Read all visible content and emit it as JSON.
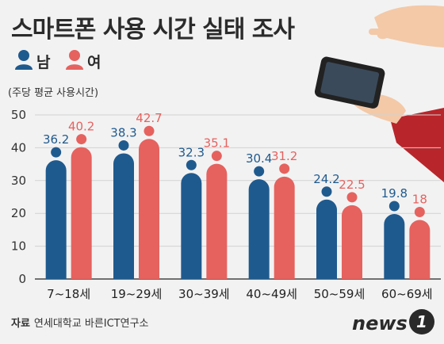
{
  "title": "스마트폰 사용 시간 실태 조사",
  "legend": {
    "male": "남",
    "female": "여"
  },
  "colors": {
    "male": "#1f5a8e",
    "female": "#e5625f",
    "axis": "#444444",
    "grid": "#d2d2d2"
  },
  "source": {
    "label": "자료",
    "text": "연세대학교 바른ICT연구소"
  },
  "logo": {
    "text": "news",
    "badge": "1"
  },
  "chart_data": {
    "type": "bar",
    "ylabel": "(주당 평균 사용시간)",
    "ylim": [
      0,
      50
    ],
    "yticks": [
      0,
      10,
      20,
      30,
      40,
      50
    ],
    "grid": true,
    "categories": [
      "7~18세",
      "19~29세",
      "30~39세",
      "40~49세",
      "50~59세",
      "60~69세"
    ],
    "series": [
      {
        "name": "남",
        "values": [
          36.2,
          38.3,
          32.3,
          30.4,
          24.2,
          19.8
        ]
      },
      {
        "name": "여",
        "values": [
          40.2,
          42.7,
          35.1,
          31.2,
          22.5,
          18.0
        ]
      }
    ]
  }
}
